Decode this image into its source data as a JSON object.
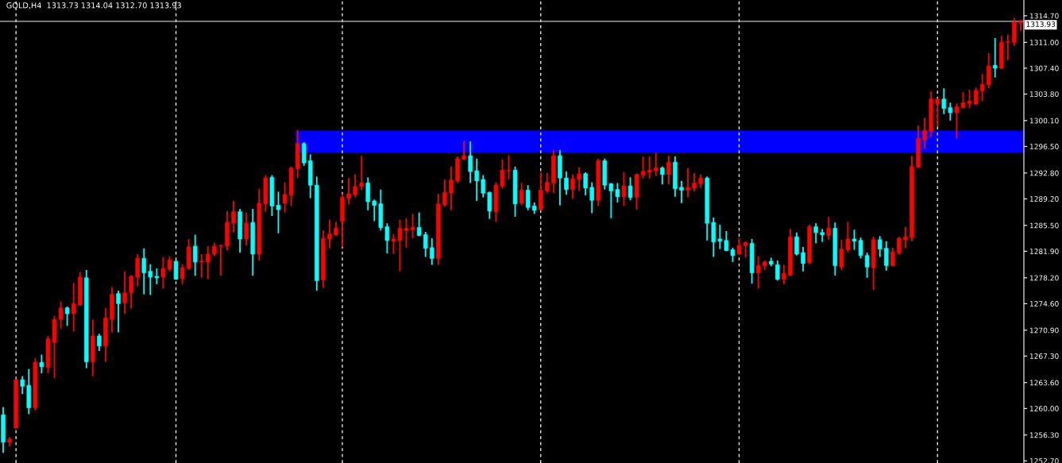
{
  "chart_data": {
    "type": "candlestick",
    "title": "GOLD,H4  1313.73 1314.04 1312.70 1313.93",
    "categories": [
      null,
      null,
      null,
      null,
      null,
      null,
      null,
      null,
      null,
      null,
      null,
      null,
      null,
      null,
      null,
      null,
      null,
      null,
      null,
      null,
      null,
      null,
      null,
      null,
      null,
      null,
      null,
      null,
      null,
      null,
      null,
      null,
      null,
      null,
      null,
      null,
      null,
      null,
      null,
      null,
      null,
      null,
      null,
      null,
      null,
      null,
      null,
      null,
      null,
      null,
      null,
      null,
      null,
      null,
      null,
      null,
      null,
      null,
      null,
      null,
      null,
      null,
      null,
      null,
      null,
      null,
      null,
      null,
      null,
      null,
      null,
      null,
      null,
      null,
      null,
      null,
      null,
      null,
      null,
      null,
      null,
      null,
      null,
      null,
      null,
      null,
      null,
      null,
      null,
      null,
      null,
      null,
      null,
      null,
      null,
      null,
      null,
      null,
      null,
      null,
      null,
      null,
      null,
      null,
      null,
      null,
      null,
      null,
      null,
      null,
      null,
      null,
      null,
      null,
      null,
      null,
      null,
      null,
      null,
      null,
      null,
      null,
      null,
      null,
      null,
      null,
      null,
      null,
      null,
      null,
      null,
      null,
      null,
      null,
      null,
      null,
      null,
      null,
      null,
      null,
      null,
      null,
      null,
      null,
      null,
      null,
      null,
      null,
      null,
      null,
      null,
      null,
      null,
      null,
      null,
      null,
      null,
      null,
      null,
      null
    ],
    "ohlc": [
      [
        1259.1,
        1260.1,
        1253.9,
        1255.3
      ],
      [
        1255.3,
        1255.9,
        1254.8,
        1255.7
      ],
      [
        1257.3,
        1264.0,
        1257.3,
        1264.0
      ],
      [
        1264.0,
        1264.4,
        1262.1,
        1263.1
      ],
      [
        1263.2,
        1265.4,
        1259.3,
        1260.1
      ],
      [
        1260.1,
        1266.9,
        1259.8,
        1266.4
      ],
      [
        1266.4,
        1267.4,
        1265.0,
        1265.8
      ],
      [
        1265.7,
        1270.0,
        1265.0,
        1269.7
      ],
      [
        1269.2,
        1272.8,
        1264.3,
        1272.4
      ],
      [
        1272.4,
        1274.8,
        1271.2,
        1274.0
      ],
      [
        1274.0,
        1274.1,
        1271.6,
        1273.2
      ],
      [
        1273.2,
        1277.4,
        1270.8,
        1274.6
      ],
      [
        1274.4,
        1278.9,
        1274.4,
        1278.3
      ],
      [
        1278.2,
        1279.2,
        1265.7,
        1266.5
      ],
      [
        1266.5,
        1272.3,
        1264.6,
        1270.1
      ],
      [
        1270.1,
        1270.3,
        1268.1,
        1268.7
      ],
      [
        1268.7,
        1273.9,
        1266.6,
        1272.6
      ],
      [
        1272.4,
        1276.8,
        1270.7,
        1275.9
      ],
      [
        1276.0,
        1276.3,
        1270.7,
        1274.6
      ],
      [
        1274.7,
        1279.0,
        1273.3,
        1276.1
      ],
      [
        1276.1,
        1278.5,
        1274.0,
        1278.4
      ],
      [
        1278.3,
        1281.4,
        1277.1,
        1280.9
      ],
      [
        1280.9,
        1282.2,
        1276.0,
        1278.9
      ],
      [
        1279.1,
        1280.0,
        1275.9,
        1278.3
      ],
      [
        1278.4,
        1279.4,
        1277.4,
        1278.2
      ],
      [
        1278.3,
        1281.0,
        1276.8,
        1279.5
      ],
      [
        1279.4,
        1281.1,
        1279.2,
        1280.7
      ],
      [
        1280.5,
        1280.5,
        1278.0,
        1278.0
      ],
      [
        1278.1,
        1280.0,
        1277.4,
        1279.6
      ],
      [
        1279.5,
        1283.5,
        1279.4,
        1282.5
      ],
      [
        1282.6,
        1284.1,
        1278.6,
        1280.4
      ],
      [
        1280.4,
        1281.4,
        1278.3,
        1280.5
      ],
      [
        1280.4,
        1282.5,
        1278.1,
        1281.5
      ],
      [
        1281.5,
        1283.0,
        1281.3,
        1282.6
      ],
      [
        1282.6,
        1282.7,
        1278.6,
        1282.7
      ],
      [
        1282.6,
        1287.4,
        1282.1,
        1285.9
      ],
      [
        1285.8,
        1288.8,
        1284.6,
        1287.4
      ],
      [
        1287.4,
        1287.7,
        1281.8,
        1283.6
      ],
      [
        1283.6,
        1287.2,
        1282.8,
        1285.8
      ],
      [
        1285.9,
        1287.7,
        1278.6,
        1281.5
      ],
      [
        1281.5,
        1290.5,
        1280.7,
        1288.6
      ],
      [
        1288.5,
        1292.4,
        1287.5,
        1292.1
      ],
      [
        1292.2,
        1292.4,
        1286.9,
        1288.2
      ],
      [
        1288.3,
        1290.1,
        1284.5,
        1287.7
      ],
      [
        1288.6,
        1291.4,
        1287.4,
        1289.8
      ],
      [
        1289.7,
        1293.6,
        1288.3,
        1293.5
      ],
      [
        1293.4,
        1298.7,
        1292.2,
        1296.9
      ],
      [
        1296.9,
        1297.0,
        1293.9,
        1294.2
      ],
      [
        1294.5,
        1295.3,
        1289.4,
        1291.1
      ],
      [
        1291.1,
        1292.2,
        1276.5,
        1277.8
      ],
      [
        1277.9,
        1284.7,
        1276.9,
        1283.7
      ],
      [
        1283.6,
        1286.2,
        1282.4,
        1284.3
      ],
      [
        1284.2,
        1285.9,
        1284.1,
        1285.1
      ],
      [
        1286.1,
        1289.8,
        1282.6,
        1289.4
      ],
      [
        1289.3,
        1292.0,
        1288.5,
        1289.9
      ],
      [
        1289.8,
        1292.5,
        1289.5,
        1290.9
      ],
      [
        1290.9,
        1295.1,
        1290.5,
        1291.4
      ],
      [
        1291.4,
        1292.1,
        1287.7,
        1288.8
      ],
      [
        1288.9,
        1289.0,
        1286.2,
        1288.3
      ],
      [
        1288.5,
        1290.4,
        1284.9,
        1285.2
      ],
      [
        1285.3,
        1285.7,
        1281.7,
        1283.4
      ],
      [
        1283.3,
        1284.2,
        1281.6,
        1283.6
      ],
      [
        1283.4,
        1286.2,
        1279.2,
        1285.1
      ],
      [
        1284.8,
        1286.4,
        1282.5,
        1285.1
      ],
      [
        1284.9,
        1287.0,
        1283.8,
        1285.2
      ],
      [
        1285.2,
        1287.2,
        1284.1,
        1284.1
      ],
      [
        1284.2,
        1284.5,
        1281.2,
        1282.3
      ],
      [
        1282.4,
        1283.6,
        1280.1,
        1280.9
      ],
      [
        1280.9,
        1289.8,
        1280.1,
        1288.5
      ],
      [
        1288.4,
        1291.8,
        1288.2,
        1290.1
      ],
      [
        1290.0,
        1293.6,
        1287.7,
        1291.8
      ],
      [
        1291.7,
        1295.0,
        1291.5,
        1294.8
      ],
      [
        1294.7,
        1297.1,
        1294.7,
        1295.2
      ],
      [
        1295.2,
        1297.1,
        1291.5,
        1293.0
      ],
      [
        1293.1,
        1294.7,
        1289.0,
        1291.7
      ],
      [
        1291.9,
        1292.4,
        1289.5,
        1290.0
      ],
      [
        1290.1,
        1290.1,
        1286.5,
        1287.5
      ],
      [
        1287.4,
        1291.4,
        1286.1,
        1291.1
      ],
      [
        1291.0,
        1294.6,
        1290.7,
        1293.2
      ],
      [
        1293.1,
        1295.2,
        1292.0,
        1293.2
      ],
      [
        1293.2,
        1293.6,
        1286.8,
        1288.5
      ],
      [
        1288.6,
        1291.3,
        1288.4,
        1290.4
      ],
      [
        1290.4,
        1291.0,
        1287.7,
        1288.0
      ],
      [
        1288.2,
        1288.6,
        1287.2,
        1287.6
      ],
      [
        1287.7,
        1292.8,
        1287.7,
        1290.4
      ],
      [
        1290.3,
        1292.7,
        1290.1,
        1291.5
      ],
      [
        1291.4,
        1295.9,
        1290.1,
        1295.2
      ],
      [
        1295.2,
        1295.9,
        1288.4,
        1292.1
      ],
      [
        1292.1,
        1292.9,
        1289.9,
        1290.5
      ],
      [
        1290.5,
        1292.5,
        1289.3,
        1292.0
      ],
      [
        1291.9,
        1293.5,
        1290.4,
        1292.7
      ],
      [
        1292.7,
        1292.8,
        1289.8,
        1290.7
      ],
      [
        1290.8,
        1291.4,
        1287.3,
        1289.0
      ],
      [
        1289.0,
        1294.7,
        1288.3,
        1294.5
      ],
      [
        1294.5,
        1294.7,
        1290.6,
        1291.1
      ],
      [
        1291.3,
        1291.3,
        1286.6,
        1290.3
      ],
      [
        1290.5,
        1291.3,
        1288.8,
        1289.5
      ],
      [
        1289.5,
        1292.8,
        1288.3,
        1291.0
      ],
      [
        1291.0,
        1292.1,
        1289.1,
        1289.4
      ],
      [
        1289.4,
        1292.6,
        1287.8,
        1292.6
      ],
      [
        1292.5,
        1295.0,
        1292.1,
        1293.0
      ],
      [
        1292.9,
        1295.0,
        1292.1,
        1293.2
      ],
      [
        1293.1,
        1295.5,
        1292.5,
        1293.5
      ],
      [
        1293.5,
        1293.6,
        1291.3,
        1292.6
      ],
      [
        1292.6,
        1295.1,
        1291.3,
        1294.3
      ],
      [
        1294.3,
        1295.0,
        1289.6,
        1290.6
      ],
      [
        1290.8,
        1291.6,
        1288.7,
        1290.4
      ],
      [
        1290.4,
        1293.4,
        1289.5,
        1290.8
      ],
      [
        1290.7,
        1292.7,
        1290.3,
        1291.4
      ],
      [
        1291.3,
        1292.5,
        1290.8,
        1292.1
      ],
      [
        1292.1,
        1292.2,
        1283.5,
        1285.8
      ],
      [
        1285.9,
        1286.5,
        1281.2,
        1283.2
      ],
      [
        1283.6,
        1285.5,
        1282.3,
        1283.3
      ],
      [
        1283.4,
        1284.6,
        1282.0,
        1282.0
      ],
      [
        1282.1,
        1282.3,
        1280.5,
        1281.3
      ],
      [
        1281.5,
        1283.6,
        1281.5,
        1282.7
      ],
      [
        1282.7,
        1283.2,
        1281.1,
        1283.1
      ],
      [
        1283.0,
        1283.5,
        1277.5,
        1278.9
      ],
      [
        1278.9,
        1281.1,
        1276.8,
        1279.9
      ],
      [
        1279.9,
        1280.5,
        1279.4,
        1280.4
      ],
      [
        1280.5,
        1280.9,
        1279.9,
        1280.1
      ],
      [
        1280.0,
        1280.5,
        1277.9,
        1278.0
      ],
      [
        1278.0,
        1279.9,
        1277.4,
        1278.8
      ],
      [
        1278.6,
        1284.9,
        1278.5,
        1283.9
      ],
      [
        1283.9,
        1284.4,
        1281.4,
        1281.5
      ],
      [
        1281.7,
        1282.4,
        1279.2,
        1280.2
      ],
      [
        1280.3,
        1285.5,
        1280.2,
        1285.3
      ],
      [
        1285.3,
        1285.7,
        1283.1,
        1284.5
      ],
      [
        1284.5,
        1284.9,
        1283.3,
        1284.2
      ],
      [
        1284.1,
        1286.6,
        1283.6,
        1285.1
      ],
      [
        1285.1,
        1285.8,
        1278.6,
        1279.9
      ],
      [
        1279.7,
        1283.4,
        1279.4,
        1282.2
      ],
      [
        1282.1,
        1285.9,
        1281.8,
        1283.6
      ],
      [
        1283.6,
        1284.8,
        1282.2,
        1283.3
      ],
      [
        1283.4,
        1283.7,
        1281.0,
        1281.3
      ],
      [
        1281.3,
        1281.6,
        1278.3,
        1279.7
      ],
      [
        1279.6,
        1283.8,
        1276.6,
        1283.5
      ],
      [
        1283.5,
        1283.9,
        1281.2,
        1282.2
      ],
      [
        1282.3,
        1283.2,
        1279.3,
        1279.9
      ],
      [
        1279.9,
        1282.3,
        1279.9,
        1281.8
      ],
      [
        1281.7,
        1283.8,
        1281.5,
        1283.7
      ],
      [
        1283.5,
        1285.2,
        1282.4,
        1283.9
      ],
      [
        1283.8,
        1295.1,
        1283.4,
        1293.7
      ],
      [
        1293.6,
        1299.3,
        1293.6,
        1297.6
      ],
      [
        1297.4,
        1300.4,
        1296.3,
        1298.7
      ],
      [
        1298.6,
        1304.1,
        1297.9,
        1303.1
      ],
      [
        1302.4,
        1303.1,
        1299.4,
        1303.1
      ],
      [
        1303.1,
        1304.5,
        1301.1,
        1301.8
      ],
      [
        1301.9,
        1302.5,
        1300.2,
        1301.2
      ],
      [
        1301.2,
        1302.4,
        1297.7,
        1302.0
      ],
      [
        1301.9,
        1304.0,
        1301.9,
        1302.6
      ],
      [
        1302.5,
        1304.3,
        1301.9,
        1302.8
      ],
      [
        1302.4,
        1304.6,
        1302.4,
        1304.3
      ],
      [
        1304.2,
        1306.5,
        1302.9,
        1305.1
      ],
      [
        1305.1,
        1309.4,
        1304.7,
        1307.7
      ],
      [
        1307.8,
        1311.5,
        1306.2,
        1307.4
      ],
      [
        1307.4,
        1311.8,
        1307.4,
        1311.0
      ],
      [
        1311.0,
        1312.0,
        1308.6,
        1311.1
      ],
      [
        1311.0,
        1314.3,
        1310.6,
        1313.8
      ],
      [
        1313.73,
        1314.04,
        1312.7,
        1313.93
      ]
    ],
    "colors": [
      "#00ffff",
      "#ff0000",
      "#ff0000",
      "#00ffff",
      "#00ffff",
      "#ff0000",
      "#00ffff",
      "#ff0000",
      "#ff0000",
      "#ff0000",
      "#00ffff",
      "#ff0000",
      "#ff0000",
      "#00ffff",
      "#ff0000",
      "#00ffff",
      "#ff0000",
      "#ff0000",
      "#00ffff",
      "#ff0000",
      "#ff0000",
      "#ff0000",
      "#00ffff",
      "#00ffff",
      "#00ffff",
      "#ff0000",
      "#ff0000",
      "#00ffff",
      "#ff0000",
      "#ff0000",
      "#00ffff",
      "#ff0000",
      "#ff0000",
      "#ff0000",
      "#ff0000",
      "#ff0000",
      "#ff0000",
      "#00ffff",
      "#ff0000",
      "#00ffff",
      "#ff0000",
      "#ff0000",
      "#00ffff",
      "#00ffff",
      "#ff0000",
      "#ff0000",
      "#ff0000",
      "#00ffff",
      "#00ffff",
      "#00ffff",
      "#ff0000",
      "#ff0000",
      "#ff0000",
      "#ff0000",
      "#ff0000",
      "#ff0000",
      "#ff0000",
      "#00ffff",
      "#00ffff",
      "#00ffff",
      "#00ffff",
      "#ff0000",
      "#ff0000",
      "#ff0000",
      "#ff0000",
      "#00ffff",
      "#00ffff",
      "#00ffff",
      "#ff0000",
      "#ff0000",
      "#ff0000",
      "#ff0000",
      "#ff0000",
      "#00ffff",
      "#00ffff",
      "#00ffff",
      "#00ffff",
      "#ff0000",
      "#ff0000",
      "#ff0000",
      "#00ffff",
      "#ff0000",
      "#00ffff",
      "#00ffff",
      "#ff0000",
      "#ff0000",
      "#ff0000",
      "#00ffff",
      "#00ffff",
      "#ff0000",
      "#ff0000",
      "#00ffff",
      "#00ffff",
      "#ff0000",
      "#00ffff",
      "#00ffff",
      "#00ffff",
      "#ff0000",
      "#00ffff",
      "#ff0000",
      "#ff0000",
      "#ff0000",
      "#ff0000",
      "#00ffff",
      "#ff0000",
      "#00ffff",
      "#00ffff",
      "#ff0000",
      "#ff0000",
      "#ff0000",
      "#00ffff",
      "#00ffff",
      "#00ffff",
      "#00ffff",
      "#00ffff",
      "#ff0000",
      "#ff0000",
      "#00ffff",
      "#ff0000",
      "#ff0000",
      "#00ffff",
      "#00ffff",
      "#ff0000",
      "#ff0000",
      "#00ffff",
      "#00ffff",
      "#ff0000",
      "#00ffff",
      "#00ffff",
      "#ff0000",
      "#00ffff",
      "#ff0000",
      "#ff0000",
      "#00ffff",
      "#00ffff",
      "#00ffff",
      "#ff0000",
      "#00ffff",
      "#00ffff",
      "#ff0000",
      "#ff0000",
      "#ff0000",
      "#ff0000",
      "#ff0000",
      "#ff0000",
      "#ff0000",
      "#ff0000",
      "#00ffff",
      "#00ffff",
      "#ff0000",
      "#ff0000",
      "#ff0000",
      "#ff0000",
      "#ff0000",
      "#ff0000",
      "#00ffff",
      "#ff0000",
      "#ff0000",
      "#ff0000",
      "#ff0000"
    ],
    "ylim": [
      1252.4,
      1316.9
    ],
    "yticks": [
      {
        "value": 1252.7,
        "label": "1252.70"
      },
      {
        "value": 1256.3,
        "label": "1256.30"
      },
      {
        "value": 1260.0,
        "label": "1260.00"
      },
      {
        "value": 1263.6,
        "label": "1263.60"
      },
      {
        "value": 1267.3,
        "label": "1267.30"
      },
      {
        "value": 1270.9,
        "label": "1270.90"
      },
      {
        "value": 1274.6,
        "label": "1274.60"
      },
      {
        "value": 1278.2,
        "label": "1278.20"
      },
      {
        "value": 1281.9,
        "label": "1281.90"
      },
      {
        "value": 1285.5,
        "label": "1285.50"
      },
      {
        "value": 1289.2,
        "label": "1289.20"
      },
      {
        "value": 1292.8,
        "label": "1292.80"
      },
      {
        "value": 1296.5,
        "label": "1296.50"
      },
      {
        "value": 1300.1,
        "label": "1300.10"
      },
      {
        "value": 1303.8,
        "label": "1303.80"
      },
      {
        "value": 1307.4,
        "label": "1307.40"
      },
      {
        "value": 1311.0,
        "label": "1311.00"
      },
      {
        "value": 1314.7,
        "label": "1314.70"
      }
    ],
    "tick_labels": "y",
    "grid": false,
    "bands": [
      {
        "axis": "y",
        "from": 1295.6,
        "to": 1298.7,
        "color": "#0000ff"
      }
    ],
    "ref_lines": [
      {
        "axis": "y",
        "value": 1313.93,
        "label": "1313.93",
        "color": "#c0c0c0"
      }
    ]
  }
}
